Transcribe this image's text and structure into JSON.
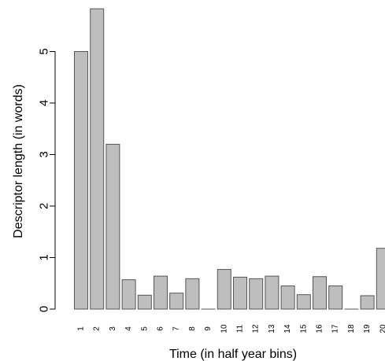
{
  "chart_data": {
    "type": "bar",
    "title": "",
    "xlabel": "Time (in half year bins)",
    "ylabel": "Descriptor length (in words)",
    "categories": [
      "1",
      "2",
      "3",
      "4",
      "5",
      "6",
      "7",
      "8",
      "9",
      "10",
      "11",
      "12",
      "13",
      "14",
      "15",
      "16",
      "17",
      "18",
      "19",
      "20"
    ],
    "values": [
      5.0,
      5.83,
      3.2,
      0.57,
      0.27,
      0.64,
      0.31,
      0.59,
      0.0,
      0.77,
      0.62,
      0.59,
      0.64,
      0.45,
      0.28,
      0.63,
      0.45,
      0.0,
      0.26,
      1.18
    ],
    "y_ticks": [
      "0",
      "1",
      "2",
      "3",
      "4",
      "5"
    ],
    "ylim": [
      0,
      6
    ],
    "grid": false,
    "colors": {
      "bar_fill": "#bebebe",
      "bar_stroke": "#555555",
      "axis": "#000000"
    }
  }
}
